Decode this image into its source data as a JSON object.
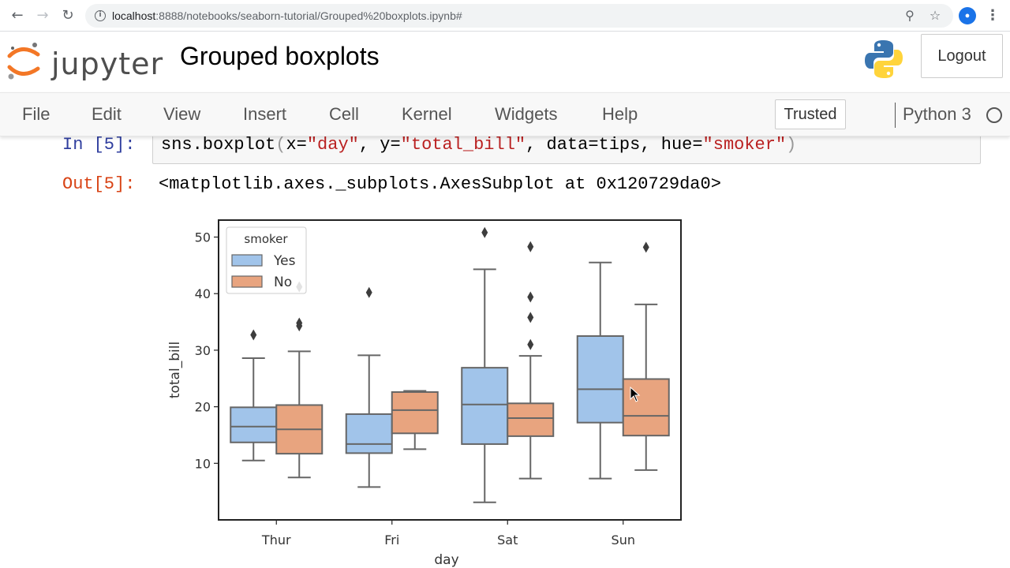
{
  "browser": {
    "back_icon": "arrow-left-icon",
    "forward_icon": "arrow-right-icon",
    "reload_icon": "reload-icon",
    "url_host": "localhost",
    "url_path": ":8888/notebooks/seaborn-tutorial/Grouped%20boxplots.ipynb#",
    "zoom_icon": "zoom-icon",
    "star_icon": "star-icon",
    "menu_icon": "kebab-menu-icon"
  },
  "header": {
    "logo_text": "jupyter",
    "notebook_title": "Grouped boxplots",
    "logout_label": "Logout"
  },
  "menubar": {
    "items": [
      "File",
      "Edit",
      "View",
      "Insert",
      "Cell",
      "Kernel",
      "Widgets",
      "Help"
    ],
    "trusted_label": "Trusted",
    "kernel_name": "Python 3"
  },
  "cell": {
    "in_prompt": "In [5]:",
    "code_prefix": "sns.boxplot",
    "code_open": "(",
    "code_p1": "x=",
    "code_s1": "\"day\"",
    "code_p2": ", y=",
    "code_s2": "\"total_bill\"",
    "code_p3": ", data=tips, hue=",
    "code_s3": "\"smoker\"",
    "code_close": ")",
    "out_prompt": "Out[5]:",
    "out_text": "<matplotlib.axes._subplots.AxesSubplot at 0x120729da0>"
  },
  "chart_data": {
    "type": "boxplot",
    "title": "",
    "xlabel": "day",
    "ylabel": "total_bill",
    "categories": [
      "Thur",
      "Fri",
      "Sat",
      "Sun"
    ],
    "ylim": [
      0,
      53
    ],
    "yticks": [
      10,
      20,
      30,
      40,
      50
    ],
    "legend": {
      "title": "smoker",
      "position": "top-left"
    },
    "grid": false,
    "series": [
      {
        "name": "Yes",
        "color": "#a1c4ea",
        "boxes": [
          {
            "whislo": 10.5,
            "q1": 13.7,
            "med": 16.5,
            "q3": 19.9,
            "whishi": 28.6,
            "fliers": [
              32.7
            ]
          },
          {
            "whislo": 5.8,
            "q1": 11.8,
            "med": 13.4,
            "q3": 18.7,
            "whishi": 29.1,
            "fliers": [
              40.2
            ]
          },
          {
            "whislo": 3.1,
            "q1": 13.4,
            "med": 20.4,
            "q3": 26.9,
            "whishi": 44.3,
            "fliers": [
              50.8
            ]
          },
          {
            "whislo": 7.3,
            "q1": 17.2,
            "med": 23.1,
            "q3": 32.5,
            "whishi": 45.5,
            "fliers": []
          }
        ]
      },
      {
        "name": "No",
        "color": "#e8a47f",
        "boxes": [
          {
            "whislo": 7.5,
            "q1": 11.7,
            "med": 16.0,
            "q3": 20.3,
            "whishi": 29.8,
            "fliers": [
              34.8,
              34.3,
              41.2
            ]
          },
          {
            "whislo": 12.5,
            "q1": 15.3,
            "med": 19.4,
            "q3": 22.6,
            "whishi": 22.8,
            "fliers": []
          },
          {
            "whislo": 7.3,
            "q1": 14.8,
            "med": 18.0,
            "q3": 20.6,
            "whishi": 29.0,
            "fliers": [
              31.0,
              35.8,
              39.4,
              48.3
            ]
          },
          {
            "whislo": 8.8,
            "q1": 14.9,
            "med": 18.4,
            "q3": 24.9,
            "whishi": 38.1,
            "fliers": [
              48.2
            ]
          }
        ]
      }
    ]
  }
}
